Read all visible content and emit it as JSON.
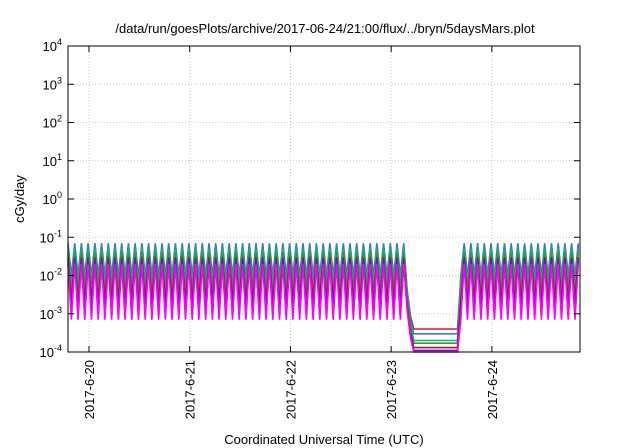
{
  "chart_data": {
    "type": "line",
    "title": "/data/run/goesPlots/archive/2017-06-24/21:00/flux/../bryn/5daysMars.plot",
    "xlabel": "Coordinated Universal Time (UTC)",
    "ylabel": "cGy/day",
    "yscale": "log",
    "ylim": [
      0.0001,
      10000
    ],
    "y_ticks": [
      {
        "base": "10",
        "exp": "-4",
        "value": 0.0001
      },
      {
        "base": "10",
        "exp": "-3",
        "value": 0.001
      },
      {
        "base": "10",
        "exp": "-2",
        "value": 0.01
      },
      {
        "base": "10",
        "exp": "-1",
        "value": 0.1
      },
      {
        "base": "10",
        "exp": "0",
        "value": 1
      },
      {
        "base": "10",
        "exp": "1",
        "value": 10
      },
      {
        "base": "10",
        "exp": "2",
        "value": 100
      },
      {
        "base": "10",
        "exp": "3",
        "value": 1000
      },
      {
        "base": "10",
        "exp": "4",
        "value": 10000
      }
    ],
    "xlim": [
      "2017-06-19 19:00",
      "2017-06-24 21:00"
    ],
    "x_ticks": [
      {
        "label": "2017-6-20",
        "date": "2017-06-20 00:00"
      },
      {
        "label": "2017-6-21",
        "date": "2017-06-21 00:00"
      },
      {
        "label": "2017-6-22",
        "date": "2017-06-22 00:00"
      },
      {
        "label": "2017-6-23",
        "date": "2017-06-23 00:00"
      },
      {
        "label": "2017-6-24",
        "date": "2017-06-24 00:00"
      }
    ],
    "grid": true,
    "gap": {
      "start": "2017-06-23 03:00",
      "end": "2017-06-23 16:00"
    },
    "series": [
      {
        "color": "#e41a1c",
        "quiet_level": 0.0004,
        "peak": 0.06,
        "trough": 0.008
      },
      {
        "color": "#377eb8",
        "quiet_level": 0.0003,
        "peak": 0.07,
        "trough": 0.01
      },
      {
        "color": "#1aab94",
        "quiet_level": 0.0002,
        "peak": 0.05,
        "trough": 0.006
      },
      {
        "color": "#2ca02c",
        "quiet_level": 0.00017,
        "peak": 0.04,
        "trough": 0.004
      },
      {
        "color": "#7b2d26",
        "quiet_level": 0.00013,
        "peak": 0.03,
        "trough": 0.002
      },
      {
        "color": "#9400d3",
        "quiet_level": 0.00011,
        "peak": 0.025,
        "trough": 0.0012
      },
      {
        "color": "#ff00ff",
        "quiet_level": 0.0001,
        "peak": 0.02,
        "trough": 0.0007
      }
    ]
  }
}
